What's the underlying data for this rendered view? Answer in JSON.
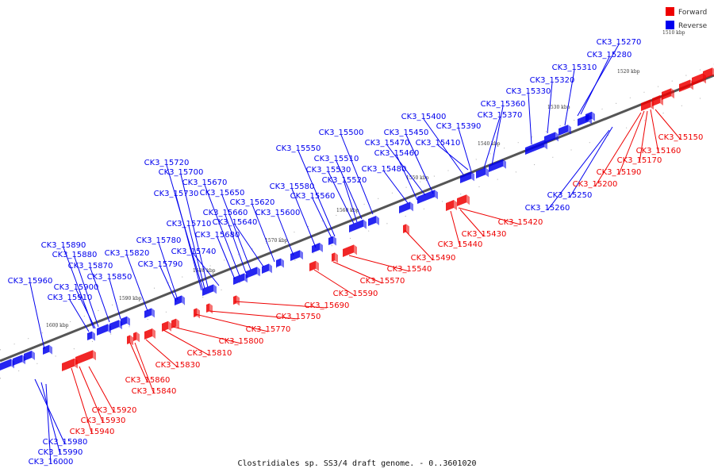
{
  "title": "Clostridiales sp. SS3/4 draft genome. - 0..3601020",
  "colors": {
    "forward": "#ee0000",
    "reverse": "#0000ee",
    "axis": "#666666"
  },
  "legend": {
    "forward": "Forward",
    "reverse": "Reverse"
  },
  "ticks": [
    "1510 kbp",
    "1520 kbp",
    "1530 kbp",
    "1540 kbp",
    "1550 kbp",
    "1560 kbp",
    "1570 kbp",
    "1580 kbp",
    "1590 kbp",
    "1600 kbp"
  ],
  "reverse_genes": [
    "CK3_15270",
    "CK3_15280",
    "CK3_15310",
    "CK3_15320",
    "CK3_15330",
    "CK3_15360",
    "CK3_15370",
    "CK3_15390",
    "CK3_15400",
    "CK3_15410",
    "CK3_15450",
    "CK3_15460",
    "CK3_15470",
    "CK3_15480",
    "CK3_15500",
    "CK3_15510",
    "CK3_15520",
    "CK3_15530",
    "CK3_15550",
    "CK3_15560",
    "CK3_15580",
    "CK3_15600",
    "CK3_15620",
    "CK3_15640",
    "CK3_15650",
    "CK3_15660",
    "CK3_15670",
    "CK3_15680",
    "CK3_15700",
    "CK3_15710",
    "CK3_15720",
    "CK3_15730",
    "CK3_15740",
    "CK3_15780",
    "CK3_15790",
    "CK3_15820",
    "CK3_15850",
    "CK3_15870",
    "CK3_15880",
    "CK3_15890",
    "CK3_15900",
    "CK3_15910",
    "CK3_15960",
    "CK3_15250",
    "CK3_15260",
    "CK3_15980",
    "CK3_15990",
    "CK3_16000"
  ],
  "forward_genes": [
    "CK3_15150",
    "CK3_15160",
    "CK3_15170",
    "CK3_15190",
    "CK3_15200",
    "CK3_15420",
    "CK3_15430",
    "CK3_15440",
    "CK3_15490",
    "CK3_15540",
    "CK3_15570",
    "CK3_15590",
    "CK3_15690",
    "CK3_15750",
    "CK3_15770",
    "CK3_15800",
    "CK3_15810",
    "CK3_15830",
    "CK3_15840",
    "CK3_15860",
    "CK3_15920",
    "CK3_15930",
    "CK3_15940"
  ]
}
